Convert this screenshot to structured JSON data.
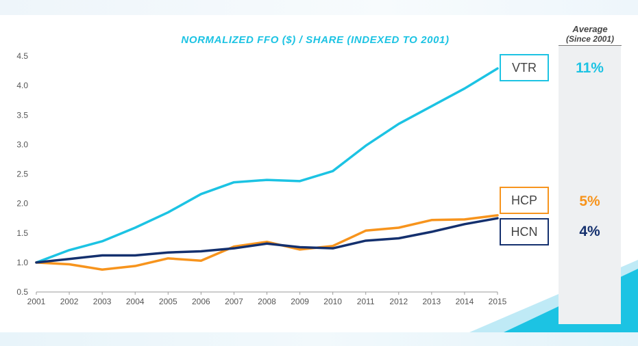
{
  "chart_data": {
    "type": "line",
    "title": "NORMALIZED FFO ($) / SHARE (INDEXED TO 2001)",
    "xlabel": "",
    "ylabel": "",
    "x": [
      2001,
      2002,
      2003,
      2004,
      2005,
      2006,
      2007,
      2008,
      2009,
      2010,
      2011,
      2012,
      2013,
      2014,
      2015
    ],
    "ylim": [
      0.5,
      4.5
    ],
    "yticks": [
      "0.5",
      "1.0",
      "1.5",
      "2.0",
      "2.5",
      "3.0",
      "3.5",
      "4.0",
      "4.5"
    ],
    "grid": false,
    "series": [
      {
        "name": "VTR",
        "color": "#1cc3e3",
        "values": [
          1.0,
          1.21,
          1.36,
          1.59,
          1.85,
          2.16,
          2.36,
          2.4,
          2.38,
          2.55,
          2.98,
          3.35,
          3.65,
          3.95,
          4.29
        ]
      },
      {
        "name": "HCP",
        "color": "#f7941d",
        "values": [
          1.0,
          0.97,
          0.88,
          0.94,
          1.07,
          1.03,
          1.27,
          1.35,
          1.22,
          1.28,
          1.54,
          1.59,
          1.72,
          1.73,
          1.8
        ]
      },
      {
        "name": "HCN",
        "color": "#14306e",
        "values": [
          1.0,
          1.06,
          1.12,
          1.12,
          1.17,
          1.19,
          1.24,
          1.32,
          1.26,
          1.24,
          1.37,
          1.41,
          1.52,
          1.65,
          1.75
        ]
      }
    ]
  },
  "average": {
    "header": "Average",
    "subheader": "(Since 2001)",
    "items": [
      {
        "name": "VTR",
        "value": "11%",
        "color": "#1cc3e3"
      },
      {
        "name": "HCP",
        "value": "5%",
        "color": "#f7941d"
      },
      {
        "name": "HCN",
        "value": "4%",
        "color": "#14306e"
      }
    ]
  },
  "decor": {
    "accent": "#1cc3e3",
    "accent_light": "#bde9f5"
  }
}
